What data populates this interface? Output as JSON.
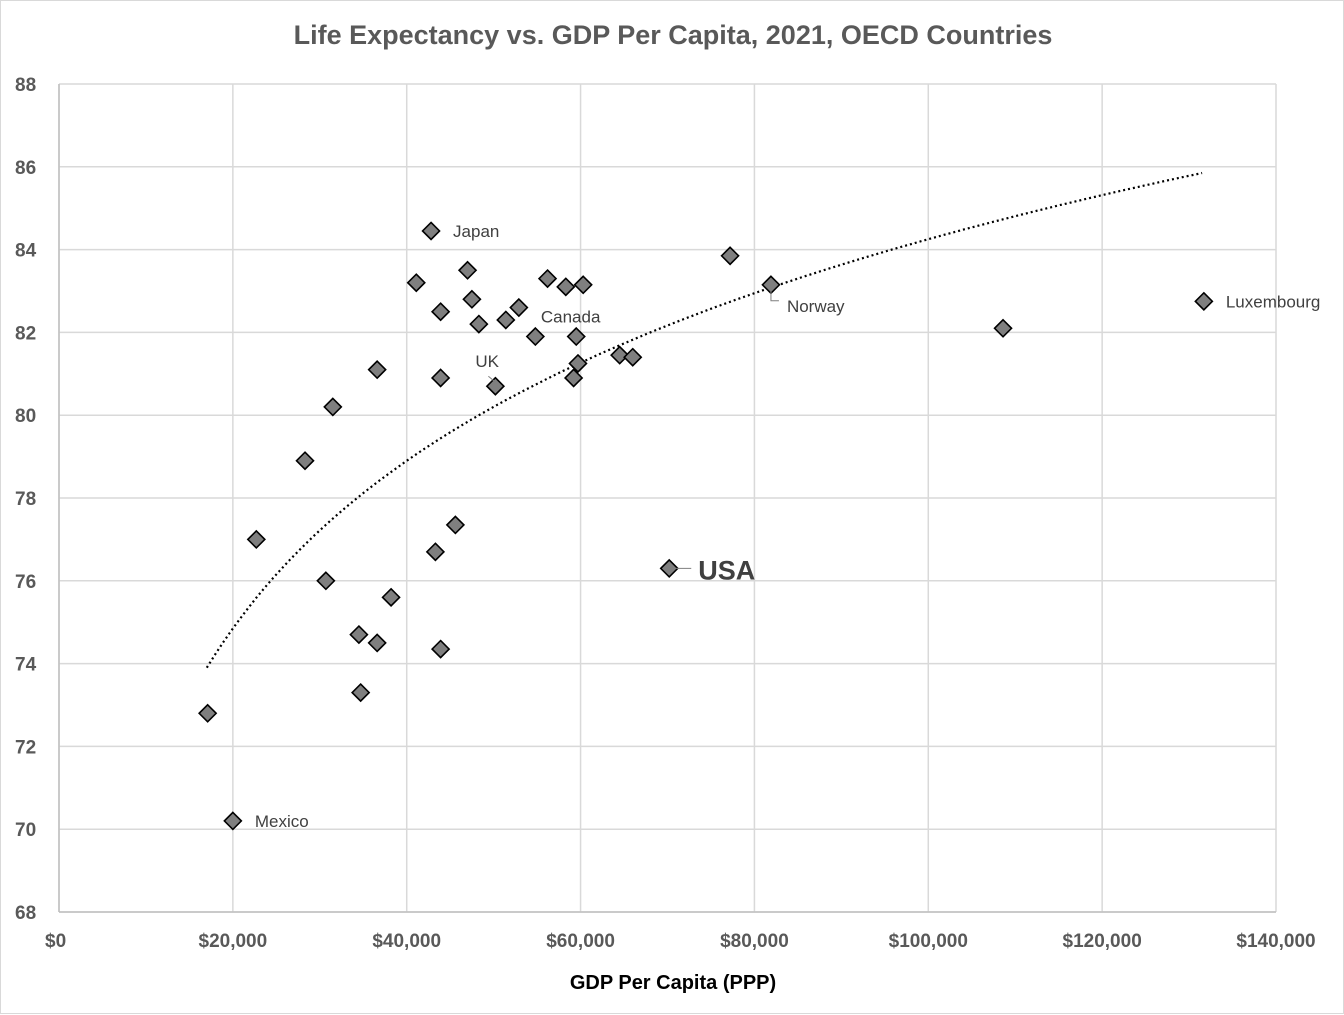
{
  "chart_data": {
    "type": "scatter",
    "title": "Life Expectancy vs. GDP Per Capita, 2021, OECD Countries",
    "xlabel": "GDP Per Capita (PPP)",
    "ylabel": "",
    "xlim": [
      0,
      140000
    ],
    "ylim": [
      68,
      88
    ],
    "x_ticks": [
      0,
      20000,
      40000,
      60000,
      80000,
      100000,
      120000,
      140000
    ],
    "x_tick_labels": [
      "$0",
      "$20,000",
      "$40,000",
      "$60,000",
      "$80,000",
      "$100,000",
      "$120,000",
      "$140,000"
    ],
    "y_ticks": [
      68,
      70,
      72,
      74,
      76,
      78,
      80,
      82,
      84,
      86,
      88
    ],
    "y_tick_labels": [
      "68",
      "70",
      "72",
      "74",
      "76",
      "78",
      "80",
      "82",
      "84",
      "86",
      "88"
    ],
    "grid": true,
    "legend": "none",
    "marker": "diamond",
    "colors": {
      "marker_fill": "#7f7f7f",
      "marker_stroke": "#000000",
      "grid": "#d9d9d9",
      "text": "#595959"
    },
    "trendline": {
      "type": "logarithmic",
      "x_range": [
        17000,
        131500
      ],
      "y_at_start": 73.9,
      "y_at_end": 85.85
    },
    "points": [
      {
        "x": 17100,
        "y": 72.8,
        "label": ""
      },
      {
        "x": 20000,
        "y": 70.2,
        "label": "Mexico"
      },
      {
        "x": 22700,
        "y": 77.0,
        "label": ""
      },
      {
        "x": 28300,
        "y": 78.9,
        "label": ""
      },
      {
        "x": 30700,
        "y": 76.0,
        "label": ""
      },
      {
        "x": 31500,
        "y": 80.2,
        "label": ""
      },
      {
        "x": 34500,
        "y": 74.7,
        "label": ""
      },
      {
        "x": 34700,
        "y": 73.3,
        "label": ""
      },
      {
        "x": 36600,
        "y": 81.1,
        "label": ""
      },
      {
        "x": 36600,
        "y": 74.5,
        "label": ""
      },
      {
        "x": 38200,
        "y": 75.6,
        "label": ""
      },
      {
        "x": 41100,
        "y": 83.2,
        "label": ""
      },
      {
        "x": 42800,
        "y": 84.45,
        "label": "Japan"
      },
      {
        "x": 43300,
        "y": 76.7,
        "label": ""
      },
      {
        "x": 43900,
        "y": 82.5,
        "label": ""
      },
      {
        "x": 43900,
        "y": 80.9,
        "label": ""
      },
      {
        "x": 43900,
        "y": 74.35,
        "label": ""
      },
      {
        "x": 45600,
        "y": 77.35,
        "label": ""
      },
      {
        "x": 47000,
        "y": 83.5,
        "label": ""
      },
      {
        "x": 47500,
        "y": 82.8,
        "label": ""
      },
      {
        "x": 48300,
        "y": 82.2,
        "label": ""
      },
      {
        "x": 50200,
        "y": 80.7,
        "label": "UK"
      },
      {
        "x": 51400,
        "y": 82.3,
        "label": ""
      },
      {
        "x": 52900,
        "y": 82.6,
        "label": "Canada"
      },
      {
        "x": 54800,
        "y": 81.9,
        "label": ""
      },
      {
        "x": 56200,
        "y": 83.3,
        "label": ""
      },
      {
        "x": 58300,
        "y": 83.1,
        "label": ""
      },
      {
        "x": 59200,
        "y": 80.9,
        "label": ""
      },
      {
        "x": 59500,
        "y": 81.9,
        "label": ""
      },
      {
        "x": 59700,
        "y": 81.25,
        "label": ""
      },
      {
        "x": 60300,
        "y": 83.15,
        "label": ""
      },
      {
        "x": 64500,
        "y": 81.45,
        "label": ""
      },
      {
        "x": 66000,
        "y": 81.4,
        "label": ""
      },
      {
        "x": 70200,
        "y": 76.3,
        "label": "USA"
      },
      {
        "x": 77200,
        "y": 83.85,
        "label": ""
      },
      {
        "x": 81900,
        "y": 83.15,
        "label": "Norway"
      },
      {
        "x": 108600,
        "y": 82.1,
        "label": ""
      },
      {
        "x": 131700,
        "y": 82.75,
        "label": "Luxembourg"
      }
    ]
  }
}
